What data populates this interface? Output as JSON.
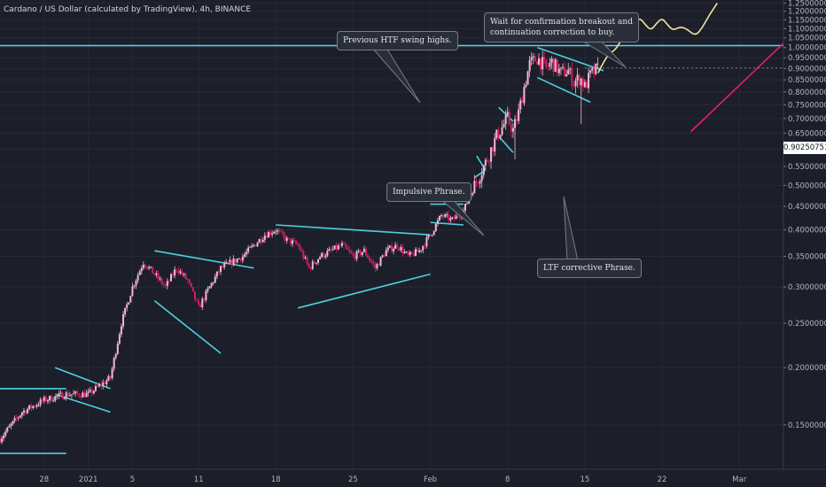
{
  "header": {
    "title": "Cardano / US Dollar (calculated by TradingView), 4h, BINANCE"
  },
  "annotations": {
    "htf": "Previous HTF swing highs.",
    "confirm_line1": "Wait for confirmation breakout and",
    "confirm_line2": "continuation correction to buy.",
    "impulsive": "Impulsive Phrase.",
    "ltf": "LTF corrective Phrase."
  },
  "current_price": "0.90250751",
  "colors": {
    "up": "#f2b8d3",
    "down": "#d81b60",
    "line": "#4dd0e1",
    "projection": "#f3e5a0",
    "red_line": "#e91e63"
  },
  "chart_data": {
    "type": "candlestick",
    "title": "Cardano / US Dollar (calculated by TradingView), 4h, BINANCE",
    "ylim": [
      0.12,
      1.27
    ],
    "yticks": [
      "1.25000000",
      "1.20000000",
      "1.15000000",
      "1.10000000",
      "1.05000000",
      "1.00000000",
      "0.95000000",
      "0.90000000",
      "0.85000000",
      "0.80000000",
      "0.75000000",
      "0.70000000",
      "0.65000000",
      "0.60000000",
      "0.55000000",
      "0.50000000",
      "0.45000000",
      "0.40000000",
      "0.35000000",
      "0.30000000",
      "0.25000000",
      "0.20000000",
      "0.15000000"
    ],
    "xticks": [
      {
        "label": "28",
        "day": -4
      },
      {
        "label": "2021",
        "day": 0
      },
      {
        "label": "5",
        "day": 4
      },
      {
        "label": "11",
        "day": 10
      },
      {
        "label": "18",
        "day": 17
      },
      {
        "label": "25",
        "day": 24
      },
      {
        "label": "Feb",
        "day": 31
      },
      {
        "label": "8",
        "day": 38
      },
      {
        "label": "15",
        "day": 45
      },
      {
        "label": "22",
        "day": 52
      },
      {
        "label": "Mar",
        "day": 59
      }
    ],
    "xlim": [
      -8,
      63
    ],
    "resistance": 1.01,
    "waypoints": [
      [
        -8,
        0.14
      ],
      [
        -6,
        0.16
      ],
      [
        -4,
        0.17
      ],
      [
        -2,
        0.175
      ],
      [
        0,
        0.175
      ],
      [
        2,
        0.19
      ],
      [
        3,
        0.25
      ],
      [
        4,
        0.3
      ],
      [
        5,
        0.34
      ],
      [
        6,
        0.32
      ],
      [
        7,
        0.3
      ],
      [
        8,
        0.33
      ],
      [
        9,
        0.31
      ],
      [
        10,
        0.27
      ],
      [
        11,
        0.3
      ],
      [
        12,
        0.33
      ],
      [
        13,
        0.34
      ],
      [
        14,
        0.35
      ],
      [
        15,
        0.37
      ],
      [
        16,
        0.39
      ],
      [
        17,
        0.4
      ],
      [
        18,
        0.38
      ],
      [
        19,
        0.37
      ],
      [
        20,
        0.33
      ],
      [
        21,
        0.35
      ],
      [
        22,
        0.36
      ],
      [
        23,
        0.37
      ],
      [
        24,
        0.35
      ],
      [
        25,
        0.36
      ],
      [
        26,
        0.33
      ],
      [
        27,
        0.36
      ],
      [
        28,
        0.37
      ],
      [
        29,
        0.35
      ],
      [
        30,
        0.36
      ],
      [
        31,
        0.39
      ],
      [
        32,
        0.43
      ],
      [
        33,
        0.42
      ],
      [
        34,
        0.44
      ],
      [
        35,
        0.5
      ],
      [
        36,
        0.56
      ],
      [
        37,
        0.64
      ],
      [
        38,
        0.7
      ],
      [
        38.5,
        0.66
      ],
      [
        39,
        0.72
      ],
      [
        39.5,
        0.82
      ],
      [
        40,
        0.92
      ],
      [
        40.7,
        0.95
      ],
      [
        41.5,
        0.9
      ],
      [
        42,
        0.93
      ],
      [
        42.8,
        0.88
      ],
      [
        43.5,
        0.89
      ],
      [
        44,
        0.84
      ],
      [
        44.6,
        0.86
      ],
      [
        45,
        0.82
      ],
      [
        45.5,
        0.87
      ],
      [
        46.2,
        0.9
      ]
    ],
    "trendlines": [
      {
        "name": "base-low",
        "from": [
          -8,
          0.13
        ],
        "to": [
          -2,
          0.13
        ]
      },
      {
        "name": "base-high",
        "from": [
          -8,
          0.18
        ],
        "to": [
          -2,
          0.18
        ]
      },
      {
        "name": "flag1-top",
        "from": [
          -3,
          0.2
        ],
        "to": [
          2,
          0.18
        ]
      },
      {
        "name": "flag1-bottom",
        "from": [
          -3,
          0.175
        ],
        "to": [
          2,
          0.16
        ]
      },
      {
        "name": "wedge1-top",
        "from": [
          6,
          0.36
        ],
        "to": [
          15,
          0.33
        ]
      },
      {
        "name": "wedge1-bottom",
        "from": [
          6,
          0.28
        ],
        "to": [
          12,
          0.215
        ]
      },
      {
        "name": "wedge2-top",
        "from": [
          17,
          0.41
        ],
        "to": [
          31,
          0.39
        ]
      },
      {
        "name": "wedge2-bottom",
        "from": [
          19,
          0.27
        ],
        "to": [
          31,
          0.32
        ]
      },
      {
        "name": "flag2-top",
        "from": [
          31,
          0.455
        ],
        "to": [
          34,
          0.455
        ]
      },
      {
        "name": "flag2-bottom",
        "from": [
          31,
          0.415
        ],
        "to": [
          34,
          0.41
        ]
      },
      {
        "name": "impulse1-top",
        "from": [
          35.2,
          0.58
        ],
        "to": [
          36,
          0.54
        ]
      },
      {
        "name": "impulse1-bottom",
        "from": [
          35,
          0.52
        ],
        "to": [
          36,
          0.54
        ]
      },
      {
        "name": "impulse2-top",
        "from": [
          37.2,
          0.74
        ],
        "to": [
          38.5,
          0.69
        ]
      },
      {
        "name": "impulse2-bottom",
        "from": [
          37.2,
          0.64
        ],
        "to": [
          38.5,
          0.59
        ]
      },
      {
        "name": "ltf-top",
        "from": [
          40.7,
          1.0
        ],
        "to": [
          46.7,
          0.89
        ]
      },
      {
        "name": "ltf-bottom",
        "from": [
          40.7,
          0.86
        ],
        "to": [
          45.5,
          0.76
        ]
      }
    ],
    "projection": [
      [
        46.2,
        0.88
      ],
      [
        46.7,
        0.93
      ],
      [
        47.2,
        0.97
      ],
      [
        47.8,
        0.99
      ],
      [
        48.4,
        1.05
      ],
      [
        49,
        1.1
      ],
      [
        49.6,
        1.14
      ],
      [
        50,
        1.16
      ],
      [
        50.5,
        1.12
      ],
      [
        51,
        1.09
      ],
      [
        51.5,
        1.13
      ],
      [
        52,
        1.16
      ],
      [
        52.5,
        1.12
      ],
      [
        53,
        1.09
      ],
      [
        53.6,
        1.11
      ],
      [
        54.2,
        1.1
      ],
      [
        55,
        1.06
      ],
      [
        55.6,
        1.1
      ],
      [
        56.3,
        1.18
      ],
      [
        57,
        1.25
      ]
    ],
    "red_line": {
      "from": [
        54.6,
        0.655
      ],
      "to": [
        66.5,
        1.23
      ]
    }
  }
}
